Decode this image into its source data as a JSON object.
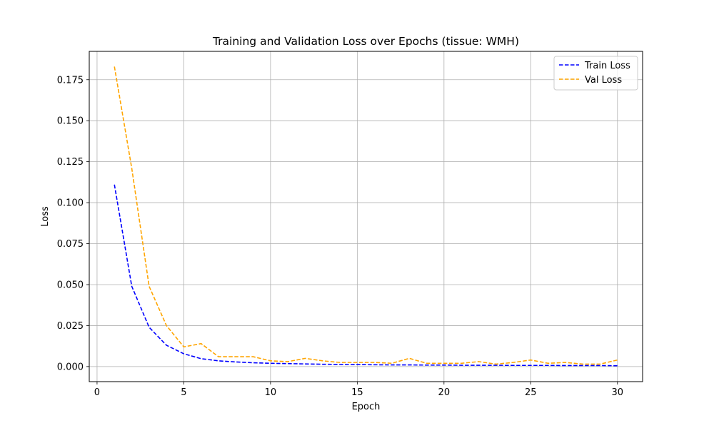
{
  "chart_data": {
    "type": "line",
    "title": "Training and Validation Loss over Epochs (tissue: WMH)",
    "xlabel": "Epoch",
    "ylabel": "Loss",
    "xlim": [
      -0.45,
      31.45
    ],
    "ylim": [
      -0.0092,
      0.1923
    ],
    "xticks": [
      0,
      5,
      10,
      15,
      20,
      25,
      30
    ],
    "yticks": [
      0.0,
      0.025,
      0.05,
      0.075,
      0.1,
      0.125,
      0.15,
      0.175
    ],
    "ytick_labels": [
      "0.000",
      "0.025",
      "0.050",
      "0.075",
      "0.100",
      "0.125",
      "0.150",
      "0.175"
    ],
    "grid": true,
    "legend_position": "upper right",
    "x": [
      1,
      2,
      3,
      4,
      5,
      6,
      7,
      8,
      9,
      10,
      11,
      12,
      13,
      14,
      15,
      16,
      17,
      18,
      19,
      20,
      21,
      22,
      23,
      24,
      25,
      26,
      27,
      28,
      29,
      30
    ],
    "series": [
      {
        "name": "Train Loss",
        "color": "#0000ff",
        "linestyle": "dashed",
        "values": [
          0.111,
          0.049,
          0.024,
          0.013,
          0.0078,
          0.0048,
          0.0035,
          0.0028,
          0.0023,
          0.002,
          0.0018,
          0.0016,
          0.0014,
          0.0013,
          0.0012,
          0.0011,
          0.001,
          0.001,
          0.0009,
          0.0009,
          0.0008,
          0.0008,
          0.0008,
          0.0007,
          0.0007,
          0.0007,
          0.0006,
          0.0006,
          0.0006,
          0.0005
        ]
      },
      {
        "name": "Val Loss",
        "color": "#ffa500",
        "linestyle": "dashed",
        "values": [
          0.183,
          0.121,
          0.049,
          0.025,
          0.012,
          0.014,
          0.006,
          0.006,
          0.006,
          0.0035,
          0.003,
          0.005,
          0.0035,
          0.0025,
          0.0025,
          0.0025,
          0.002,
          0.005,
          0.002,
          0.002,
          0.002,
          0.003,
          0.0015,
          0.0025,
          0.004,
          0.002,
          0.0025,
          0.0015,
          0.0015,
          0.004
        ]
      }
    ]
  }
}
